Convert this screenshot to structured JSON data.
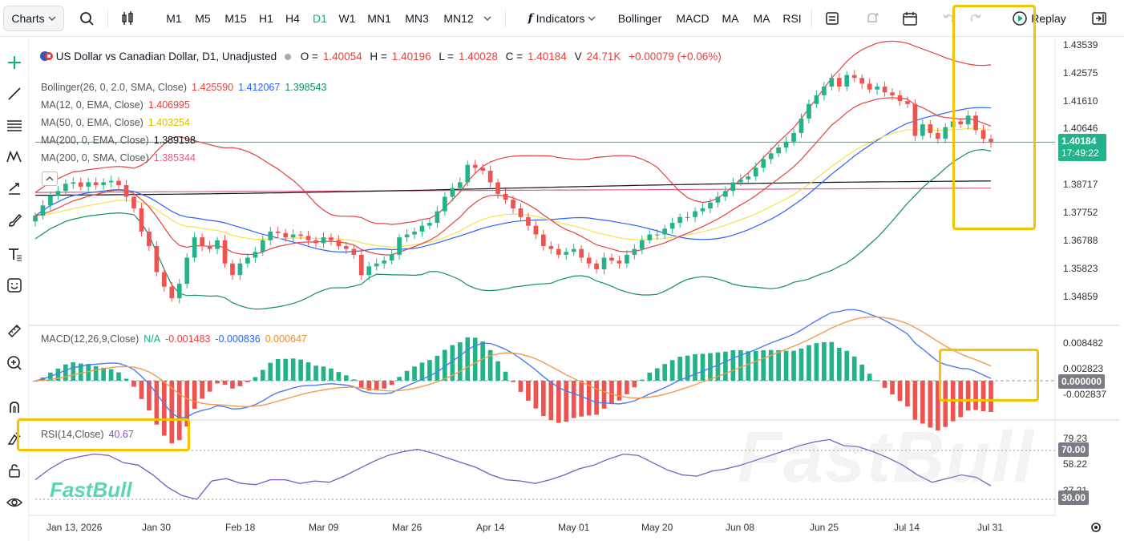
{
  "toolbar": {
    "charts_label": "Charts",
    "timeframes": [
      "M1",
      "M5",
      "M15",
      "H1",
      "H4",
      "D1",
      "W1",
      "MN1",
      "MN3",
      "MN12"
    ],
    "active_timeframe": "D1",
    "indicators_label": "Indicators",
    "quick_indicators": [
      "Bollinger",
      "MACD",
      "MA",
      "MA",
      "RSI"
    ],
    "replay_label": "Replay"
  },
  "legend": {
    "title": "US Dollar vs Canadian Dollar, D1, Unadjusted",
    "o_label": "O =",
    "o_value": "1.40054",
    "h_label": "H =",
    "h_value": "1.40196",
    "l_label": "L =",
    "l_value": "1.40028",
    "c_label": "C =",
    "c_value": "1.40184",
    "v_label": "V",
    "v_value": "24.71K",
    "change": "+0.00079 (+0.06%)",
    "bollinger_name": "Bollinger(26, 0, 2.0, SMA, Close)",
    "bollinger_values": [
      "1.425590",
      "1.412067",
      "1.398543"
    ],
    "ma1_name": "MA(12, 0, EMA, Close)",
    "ma1_value": "1.406995",
    "ma2_name": "MA(50, 0, EMA, Close)",
    "ma2_value": "1.403254",
    "ma3_name": "MA(200, 0, EMA, Close)",
    "ma3_value": "1.389198",
    "ma4_name": "MA(200, 0, SMA, Close)",
    "ma4_value": "1.385344",
    "macd_name": "MACD(12,26,9,Close)",
    "macd_values": [
      "N/A",
      "-0.001483",
      "-0.000836",
      "0.000647"
    ],
    "rsi_name": "RSI(14,Close)",
    "rsi_value": "40.67"
  },
  "price_axis": [
    "1.43539",
    "1.42575",
    "1.41610",
    "1.40646",
    "1.38717",
    "1.37752",
    "1.36788",
    "1.35823",
    "1.34859"
  ],
  "current_price": "1.40184",
  "countdown": "17:49:22",
  "macd_axis": [
    "0.008482",
    "0.002823",
    "-0.002837"
  ],
  "macd_current": "0.000000",
  "rsi_axis": [
    "79.23",
    "58.22",
    "37.21"
  ],
  "rsi_levels": [
    "70.00",
    "30.00"
  ],
  "date_axis": [
    "Jan 13, 2026",
    "Jan 30",
    "Feb 18",
    "Mar 09",
    "Mar 26",
    "Apr 14",
    "May 01",
    "May 20",
    "Jun 08",
    "Jun 25",
    "Jul 14",
    "Jul 31"
  ],
  "watermark": "FastBull",
  "colors": {
    "up": "#22b38a",
    "down": "#ef5350",
    "bb_upper": "#e8413c",
    "bb_mid": "#2962ff",
    "bb_lower": "#0e8f6a",
    "ma12": "#e8413c",
    "ma50": "#f7e14a",
    "ma200ema": "#111111",
    "ma200sma": "#e05b8a",
    "macd": "#4c7cf0",
    "signal": "#f59a4a",
    "rsi": "#7e57c2",
    "highlight": "#f5c400"
  },
  "chart_data": {
    "type": "candlestick",
    "closes": [
      1.3765,
      1.38,
      1.3835,
      1.385,
      1.3875,
      1.388,
      1.3865,
      1.388,
      1.387,
      1.388,
      1.3885,
      1.387,
      1.383,
      1.379,
      1.371,
      1.366,
      1.357,
      1.352,
      1.348,
      1.353,
      1.362,
      1.369,
      1.366,
      1.365,
      1.368,
      1.36,
      1.356,
      1.36,
      1.362,
      1.364,
      1.368,
      1.371,
      1.3705,
      1.369,
      1.37,
      1.3695,
      1.368,
      1.367,
      1.369,
      1.368,
      1.366,
      1.365,
      1.363,
      1.356,
      1.359,
      1.36,
      1.361,
      1.363,
      1.369,
      1.37,
      1.371,
      1.373,
      1.374,
      1.378,
      1.383,
      1.386,
      1.388,
      1.394,
      1.393,
      1.392,
      1.388,
      1.384,
      1.382,
      1.379,
      1.376,
      1.373,
      1.37,
      1.366,
      1.365,
      1.363,
      1.364,
      1.365,
      1.362,
      1.36,
      1.358,
      1.362,
      1.361,
      1.36,
      1.363,
      1.365,
      1.368,
      1.37,
      1.37,
      1.372,
      1.374,
      1.376,
      1.376,
      1.378,
      1.379,
      1.381,
      1.383,
      1.385,
      1.388,
      1.389,
      1.39,
      1.393,
      1.396,
      1.398,
      1.4,
      1.402,
      1.405,
      1.41,
      1.415,
      1.418,
      1.421,
      1.424,
      1.421,
      1.425,
      1.424,
      1.422,
      1.42,
      1.421,
      1.419,
      1.418,
      1.416,
      1.415,
      1.404,
      1.408,
      1.405,
      1.403,
      1.407,
      1.409,
      1.408,
      1.411,
      1.406,
      1.403,
      1.4018
    ],
    "rsi": [
      46,
      55,
      62,
      65,
      67,
      66,
      60,
      58,
      50,
      40,
      33,
      30,
      45,
      47,
      43,
      42,
      46,
      46,
      43,
      45,
      44,
      49,
      55,
      61,
      66,
      69,
      71,
      68,
      64,
      60,
      56,
      50,
      46,
      45,
      43,
      46,
      50,
      55,
      58,
      63,
      67,
      66,
      60,
      54,
      50,
      49,
      53,
      55,
      58,
      62,
      66,
      70,
      74,
      77,
      79,
      74,
      73,
      69,
      64,
      58,
      50,
      44,
      47,
      50,
      48,
      41
    ],
    "rsi_range": [
      30,
      79.23
    ]
  }
}
